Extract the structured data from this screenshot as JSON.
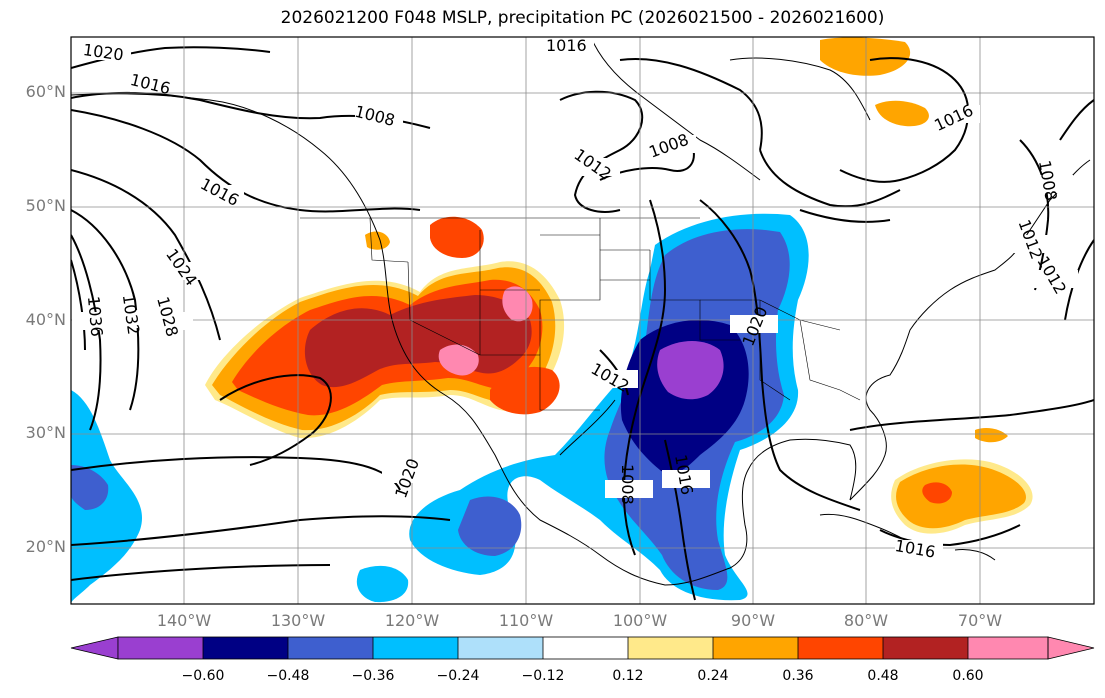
{
  "title": "2026021200 F048 MSLP, precipitation PC (2026021500 - 2026021600)",
  "lat_labels": [
    "60°N",
    "50°N",
    "40°N",
    "30°N",
    "20°N"
  ],
  "lon_labels": [
    "140°W",
    "130°W",
    "120°W",
    "110°W",
    "100°W",
    "90°W",
    "80°W",
    "70°W"
  ],
  "isobar_labels": [
    "1020",
    "1016",
    "1016",
    "1008",
    "1016",
    "1024",
    "1032",
    "1036",
    "1028",
    "1012",
    "1008",
    "1020",
    "1016",
    "1012",
    "1008",
    "1020",
    "1012",
    "1008",
    "1016",
    "1016",
    "1012"
  ],
  "colorbar": {
    "tick_labels": [
      "−0.60",
      "−0.48",
      "−0.36",
      "−0.24",
      "−0.12",
      "0.12",
      "0.24",
      "0.36",
      "0.48",
      "0.60"
    ],
    "colors": [
      "#9a3fd0",
      "#000084",
      "#3e5fcf",
      "#00bfff",
      "#aee0fa",
      "#ffffff",
      "#ffe98a",
      "#ffa500",
      "#ff4500",
      "#b22222",
      "#ff88b0"
    ]
  },
  "chart_data": {
    "type": "map",
    "title": "2026021200 F048 MSLP, precipitation PC (2026021500 - 2026021600)",
    "fields": [
      "MSLP contours (hPa)",
      "precipitation PC (filled)"
    ],
    "contour_levels_labeled": [
      1008,
      1012,
      1016,
      1020,
      1024,
      1028,
      1032,
      1036
    ],
    "colorbar_levels": [
      -0.6,
      -0.48,
      -0.36,
      -0.24,
      -0.12,
      0.12,
      0.24,
      0.36,
      0.48,
      0.6
    ],
    "lat_ticks": [
      60,
      50,
      40,
      30,
      20
    ],
    "lon_ticks": [
      -140,
      -130,
      -120,
      -110,
      -100,
      -90,
      -80,
      -70
    ],
    "region": "North America"
  }
}
